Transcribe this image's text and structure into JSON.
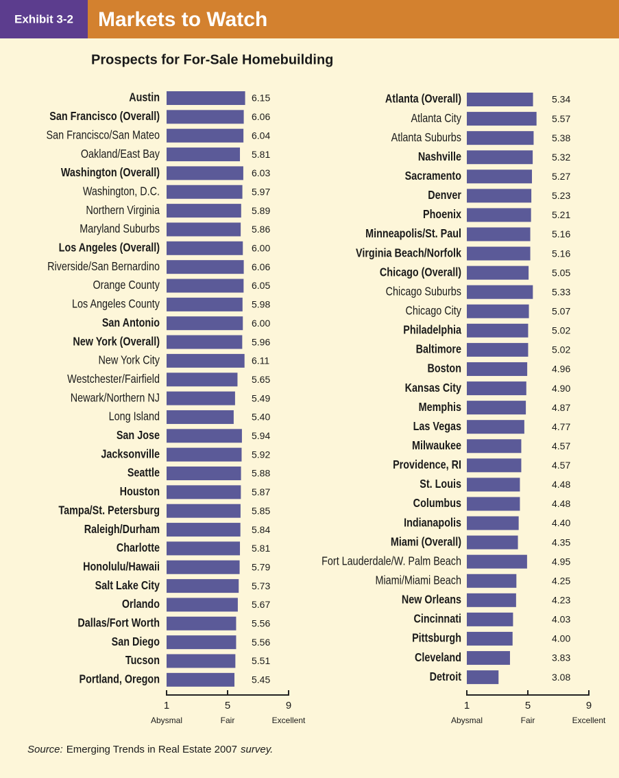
{
  "header": {
    "exhibit": "Exhibit 3-2",
    "title": "Markets to Watch"
  },
  "title": "Prospects for For-Sale Homebuilding",
  "source": {
    "prefix": "Source:",
    "text": "Emerging Trends in Real Estate 2007",
    "suffix": "survey."
  },
  "chart_data": [
    {
      "type": "bar",
      "orientation": "horizontal",
      "color": "#5b5a98",
      "categories": [
        "Austin",
        "San Francisco (Overall)",
        "San Francisco/San Mateo",
        "Oakland/East Bay",
        "Washington (Overall)",
        "Washington, D.C.",
        "Northern Virginia",
        "Maryland Suburbs",
        "Los Angeles (Overall)",
        "Riverside/San Bernardino",
        "Orange County",
        "Los Angeles County",
        "San Antonio",
        "New York (Overall)",
        "New York City",
        "Westchester/Fairfield",
        "Newark/Northern NJ",
        "Long Island",
        "San Jose",
        "Jacksonville",
        "Seattle",
        "Houston",
        "Tampa/St. Petersburg",
        "Raleigh/Durham",
        "Charlotte",
        "Honolulu/Hawaii",
        "Salt Lake City",
        "Orlando",
        "Dallas/Fort Worth",
        "San Diego",
        "Tucson",
        "Portland, Oregon"
      ],
      "bold": [
        true,
        true,
        false,
        false,
        true,
        false,
        false,
        false,
        true,
        false,
        false,
        false,
        true,
        true,
        false,
        false,
        false,
        false,
        true,
        true,
        true,
        true,
        true,
        true,
        true,
        true,
        true,
        true,
        true,
        true,
        true,
        true
      ],
      "values": [
        6.15,
        6.06,
        6.04,
        5.81,
        6.03,
        5.97,
        5.89,
        5.86,
        6.0,
        6.06,
        6.05,
        5.98,
        6.0,
        5.96,
        6.11,
        5.65,
        5.49,
        5.4,
        5.94,
        5.92,
        5.88,
        5.87,
        5.85,
        5.84,
        5.81,
        5.79,
        5.73,
        5.67,
        5.56,
        5.56,
        5.51,
        5.45
      ],
      "value_labels": [
        "6.15",
        "6.06",
        "6.04",
        "5.81",
        "6.03",
        "5.97",
        "5.89",
        "5.86",
        "6.00",
        "6.06",
        "6.05",
        "5.98",
        "6.00",
        "5.96",
        "6.11",
        "5.65",
        "5.49",
        "5.40",
        "5.94",
        "5.92",
        "5.88",
        "5.87",
        "5.85",
        "5.84",
        "5.81",
        "5.79",
        "5.73",
        "5.67",
        "5.56",
        "5.56",
        "5.51",
        "5.45"
      ],
      "xlim": [
        1,
        9
      ],
      "xticks": [
        1,
        5,
        9
      ],
      "xtick_captions": [
        "Abysmal",
        "Fair",
        "Excellent"
      ]
    },
    {
      "type": "bar",
      "orientation": "horizontal",
      "color": "#5b5a98",
      "categories": [
        "Atlanta (Overall)",
        "Atlanta City",
        "Atlanta Suburbs",
        "Nashville",
        "Sacramento",
        "Denver",
        "Phoenix",
        "Minneapolis/St. Paul",
        "Virginia Beach/Norfolk",
        "Chicago (Overall)",
        "Chicago Suburbs",
        "Chicago City",
        "Philadelphia",
        "Baltimore",
        "Boston",
        "Kansas City",
        "Memphis",
        "Las Vegas",
        "Milwaukee",
        "Providence, RI",
        "St. Louis",
        "Columbus",
        "Indianapolis",
        "Miami (Overall)",
        "Fort Lauderdale/W. Palm Beach",
        "Miami/Miami Beach",
        "New Orleans",
        "Cincinnati",
        "Pittsburgh",
        "Cleveland",
        "Detroit"
      ],
      "bold": [
        true,
        false,
        false,
        true,
        true,
        true,
        true,
        true,
        true,
        true,
        false,
        false,
        true,
        true,
        true,
        true,
        true,
        true,
        true,
        true,
        true,
        true,
        true,
        true,
        false,
        false,
        true,
        true,
        true,
        true,
        true
      ],
      "values": [
        5.34,
        5.57,
        5.38,
        5.32,
        5.27,
        5.23,
        5.21,
        5.16,
        5.16,
        5.05,
        5.33,
        5.07,
        5.02,
        5.02,
        4.96,
        4.9,
        4.87,
        4.77,
        4.57,
        4.57,
        4.48,
        4.48,
        4.4,
        4.35,
        4.95,
        4.25,
        4.23,
        4.03,
        4.0,
        3.83,
        3.08
      ],
      "value_labels": [
        "5.34",
        "5.57",
        "5.38",
        "5.32",
        "5.27",
        "5.23",
        "5.21",
        "5.16",
        "5.16",
        "5.05",
        "5.33",
        "5.07",
        "5.02",
        "5.02",
        "4.96",
        "4.90",
        "4.87",
        "4.77",
        "4.57",
        "4.57",
        "4.48",
        "4.48",
        "4.40",
        "4.35",
        "4.95",
        "4.25",
        "4.23",
        "4.03",
        "4.00",
        "3.83",
        "3.08"
      ],
      "xlim": [
        1,
        9
      ],
      "xticks": [
        1,
        5,
        9
      ],
      "xtick_captions": [
        "Abysmal",
        "Fair",
        "Excellent"
      ]
    }
  ]
}
